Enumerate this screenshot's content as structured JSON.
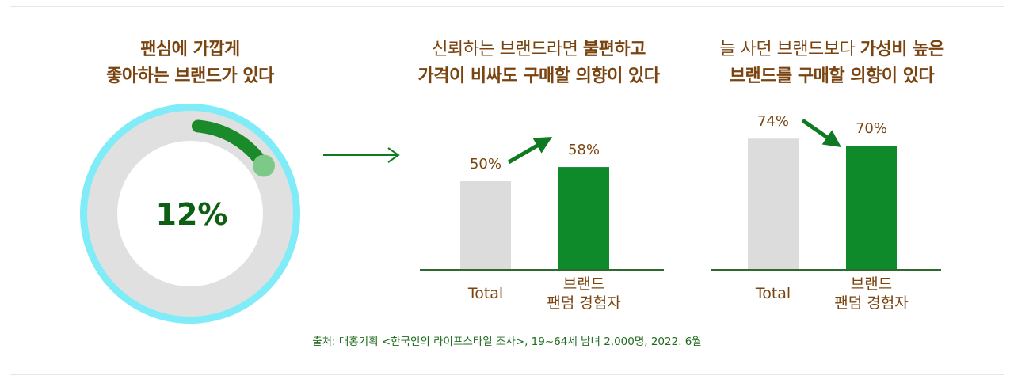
{
  "titles": {
    "t1_line1": "팬심에 가깝게",
    "t1_line2": "좋아하는 브랜드가 있다",
    "t2_line1_a": "신뢰하는 브랜드라면 ",
    "t2_line1_b": "불편하고",
    "t2_line2": "가격이 비싸도 구매할 의향이 있다",
    "t3_line1_a": "늘 사던 브랜드보다 ",
    "t3_line1_b": "가성비 높은",
    "t3_line2": "브랜드를 구매할 의향이 있다"
  },
  "source": "출처: 대홍기획 <한국인의 라이프스타일 조사>, 19~64세 남녀 2,000명, 2022. 6월",
  "colors": {
    "ring_track": "#e0e0e0",
    "ring_outer": "#7fecf7",
    "ring_fill": "#1a8a2a",
    "ring_knob": "#7dc987",
    "bar_gray": "#dcdcdc",
    "bar_green": "#0f8a2a",
    "text_brown": "#7a4410",
    "percent_green": "#0e5e14",
    "arrow_green": "#0f7a22"
  },
  "chart_data": [
    {
      "type": "pie",
      "title": "팬심에 가깝게 좋아하는 브랜드가 있다",
      "values": [
        12
      ],
      "label": "12%"
    },
    {
      "type": "bar",
      "title": "신뢰하는 브랜드라면 불편하고 가격이 비싸도 구매할 의향이 있다",
      "categories": [
        "Total",
        "브랜드\n팬덤 경험자"
      ],
      "values": [
        50,
        58
      ],
      "labels": [
        "50%",
        "58%"
      ],
      "ylim": [
        0,
        100
      ]
    },
    {
      "type": "bar",
      "title": "늘 사던 브랜드보다 가성비 높은 브랜드를 구매할 의향이 있다",
      "categories": [
        "Total",
        "브랜드\n팬덤 경험자"
      ],
      "values": [
        74,
        70
      ],
      "labels": [
        "74%",
        "70%"
      ],
      "ylim": [
        0,
        100
      ]
    }
  ],
  "category_lines": {
    "cat1": "Total",
    "cat2_line1": "브랜드",
    "cat2_line2": "팬덤 경험자"
  }
}
